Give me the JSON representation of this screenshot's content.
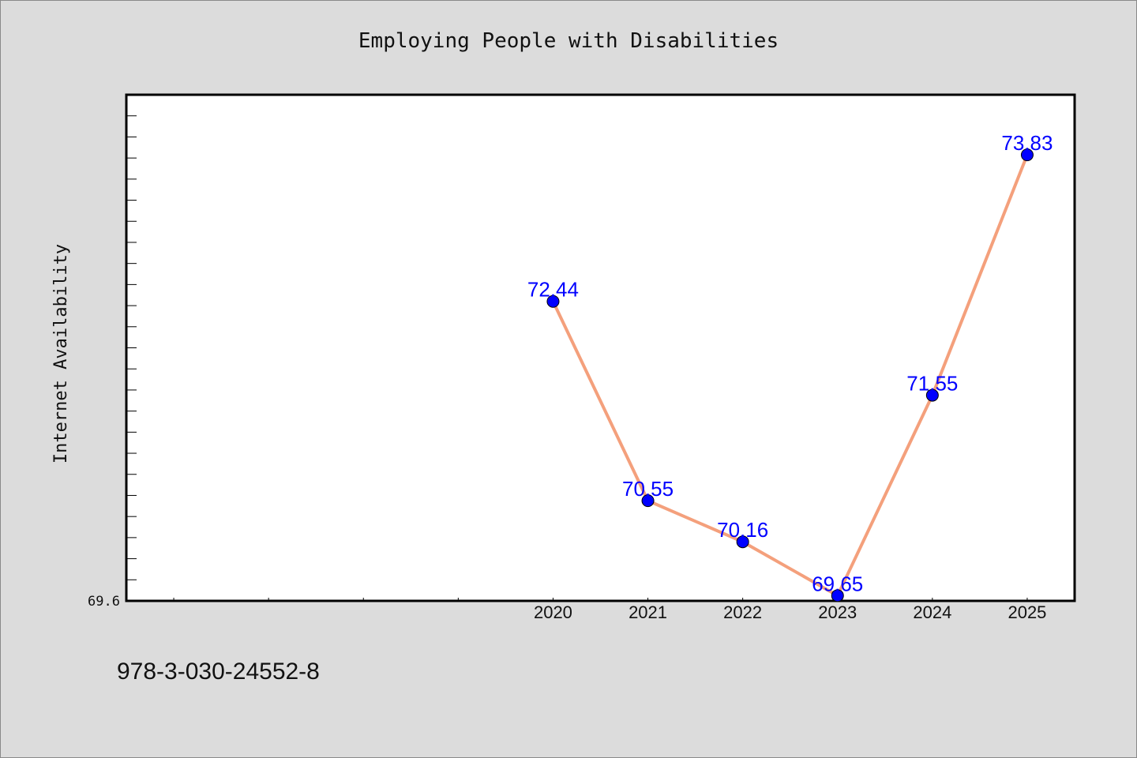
{
  "chart_data": {
    "type": "line",
    "title": "Employing People with Disabilities",
    "xlabel": "",
    "ylabel": "Internet Availability",
    "categories": [
      "2020",
      "2021",
      "2022",
      "2023",
      "2024",
      "2025"
    ],
    "series": [
      {
        "values": [
          72.44,
          70.55,
          70.16,
          69.65,
          71.55,
          73.83
        ]
      }
    ],
    "data_labels": [
      "72.44",
      "70.55",
      "70.16",
      "69.65",
      "71.55",
      "73.83"
    ],
    "y_tick_labels": [
      "69.6"
    ],
    "ylim": [
      69.6,
      74.4
    ],
    "xlim": [
      2015.5,
      2025.5
    ],
    "grid": false,
    "line_color": "#f4a07c",
    "marker_color": "#0000ff",
    "label_color": "#0000ff"
  },
  "footer_note": "978-3-030-24552-8"
}
